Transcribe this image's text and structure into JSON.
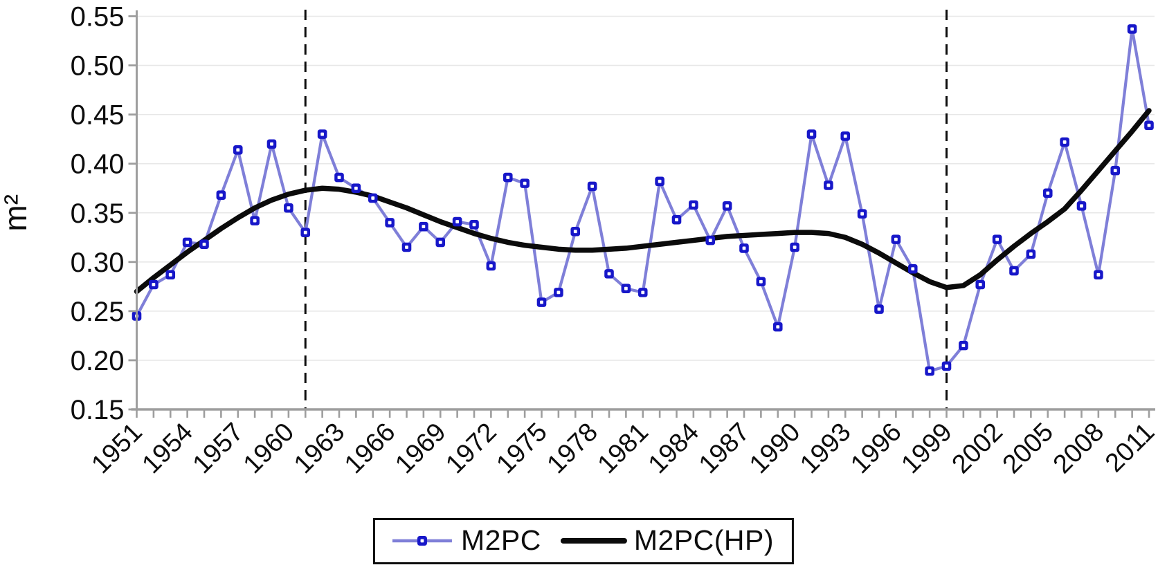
{
  "chart_data": {
    "type": "line",
    "title": "",
    "xlabel": "",
    "ylabel": "m²",
    "ylim": [
      0.15,
      0.55
    ],
    "ytick_step": 0.05,
    "ytick_labels": [
      "0.55",
      "0.50",
      "0.45",
      "0.40",
      "0.35",
      "0.30",
      "0.25",
      "0.20",
      "0.15"
    ],
    "x": [
      1951,
      1952,
      1953,
      1954,
      1955,
      1956,
      1957,
      1958,
      1959,
      1960,
      1961,
      1962,
      1963,
      1964,
      1965,
      1966,
      1967,
      1968,
      1969,
      1970,
      1971,
      1972,
      1973,
      1974,
      1975,
      1976,
      1977,
      1978,
      1979,
      1980,
      1981,
      1982,
      1983,
      1984,
      1985,
      1986,
      1987,
      1988,
      1989,
      1990,
      1991,
      1992,
      1993,
      1994,
      1995,
      1996,
      1997,
      1998,
      1999,
      2000,
      2001,
      2002,
      2003,
      2004,
      2005,
      2006,
      2007,
      2008,
      2009,
      2010,
      2011
    ],
    "xtick_label_years": [
      1951,
      1954,
      1957,
      1960,
      1963,
      1966,
      1969,
      1972,
      1975,
      1978,
      1981,
      1984,
      1987,
      1990,
      1993,
      1996,
      1999,
      2002,
      2005,
      2008,
      2011
    ],
    "series": [
      {
        "name": "M2PC",
        "style": "line-with-square-markers",
        "color": "#7F7FD8",
        "marker_color": "#1717C9",
        "marker_inner_color": "#ffffff",
        "values": [
          0.245,
          0.277,
          0.287,
          0.32,
          0.318,
          0.368,
          0.414,
          0.342,
          0.42,
          0.355,
          0.33,
          0.43,
          0.386,
          0.375,
          0.365,
          0.34,
          0.315,
          0.336,
          0.32,
          0.341,
          0.338,
          0.296,
          0.386,
          0.38,
          0.259,
          0.269,
          0.331,
          0.377,
          0.288,
          0.273,
          0.269,
          0.382,
          0.343,
          0.358,
          0.322,
          0.357,
          0.314,
          0.28,
          0.234,
          0.315,
          0.43,
          0.378,
          0.428,
          0.349,
          0.252,
          0.323,
          0.293,
          0.189,
          0.194,
          0.215,
          0.277,
          0.323,
          0.291,
          0.308,
          0.37,
          0.422,
          0.357,
          0.287,
          0.393,
          0.537,
          0.439
        ]
      },
      {
        "name": "M2PC(HP)",
        "style": "thick-smooth-line",
        "color": "#0b0b0b",
        "values": [
          0.27,
          0.284,
          0.297,
          0.31,
          0.322,
          0.334,
          0.345,
          0.355,
          0.363,
          0.369,
          0.373,
          0.375,
          0.374,
          0.371,
          0.367,
          0.361,
          0.355,
          0.348,
          0.341,
          0.335,
          0.329,
          0.324,
          0.32,
          0.317,
          0.315,
          0.313,
          0.312,
          0.312,
          0.313,
          0.314,
          0.316,
          0.318,
          0.32,
          0.322,
          0.324,
          0.326,
          0.327,
          0.328,
          0.329,
          0.33,
          0.33,
          0.329,
          0.325,
          0.318,
          0.309,
          0.299,
          0.289,
          0.28,
          0.274,
          0.276,
          0.287,
          0.302,
          0.316,
          0.329,
          0.341,
          0.354,
          0.373,
          0.393,
          0.413,
          0.433,
          0.454
        ]
      }
    ],
    "vlines": {
      "years": [
        1961,
        1999
      ],
      "style": "dashed",
      "color": "#0d0d0d"
    },
    "grid": "horizontal",
    "legend_position": "bottom-center",
    "colors": {
      "background": "#ffffff",
      "gridline": "#e7e7e7",
      "axis": "#9e9e9e",
      "text": "#0d0d0d"
    }
  }
}
